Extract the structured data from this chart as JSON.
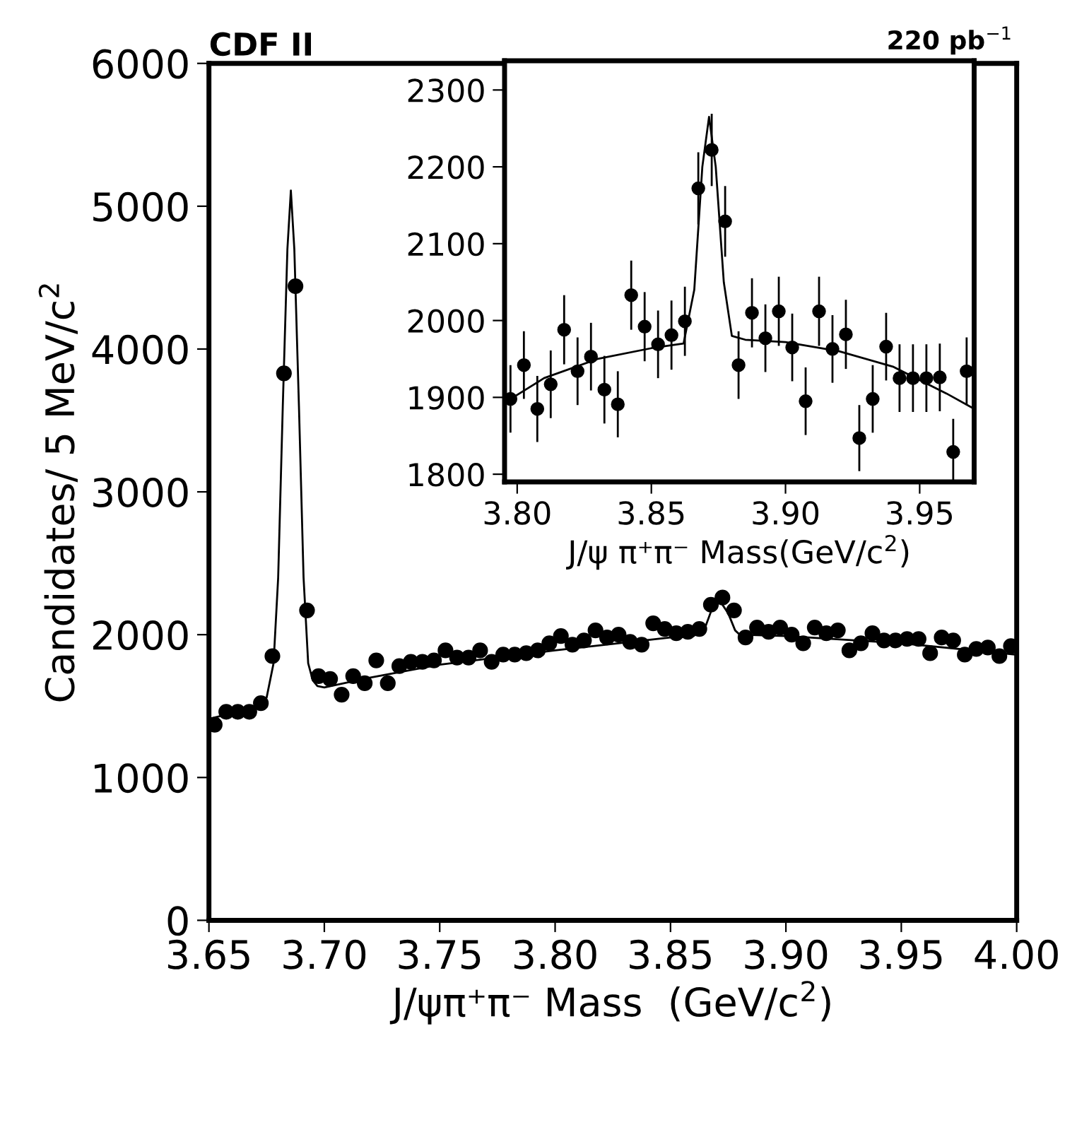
{
  "chart_data": [
    {
      "type": "scatter",
      "title": "CDF II",
      "xlabel": "J/ψπ⁺π⁻ Mass  (GeV/c$^{2}$)",
      "ylabel": "Candidates/ 5 MeV/c$^{2}$",
      "annotations": [
        "220 pb$^{−1}$"
      ],
      "xlim": [
        3.65,
        4.0
      ],
      "xticks": [
        {
          "value": 3.65,
          "label": "3.65"
        },
        {
          "value": 3.7,
          "label": "3.70"
        },
        {
          "value": 3.75,
          "label": "3.75"
        },
        {
          "value": 3.8,
          "label": "3.80"
        },
        {
          "value": 3.85,
          "label": "3.85"
        },
        {
          "value": 3.9,
          "label": "3.90"
        },
        {
          "value": 3.95,
          "label": "3.95"
        },
        {
          "value": 4.0,
          "label": "4.00"
        }
      ],
      "ylim": [
        0,
        6000
      ],
      "yticks": [
        0,
        1000,
        2000,
        3000,
        4000,
        5000,
        6000
      ],
      "series": [
        {
          "color": "#000000",
          "marker": "circle",
          "x": [
            3.6525,
            3.6575,
            3.6625,
            3.6675,
            3.6725,
            3.6775,
            3.6825,
            3.6875,
            3.6925,
            3.6975,
            3.7025,
            3.7075,
            3.7125,
            3.7175,
            3.7225,
            3.7275,
            3.7325,
            3.7375,
            3.7425,
            3.7475,
            3.7525,
            3.7575,
            3.7625,
            3.7675,
            3.7725,
            3.7775,
            3.7825,
            3.7875,
            3.7925,
            3.7975,
            3.8025,
            3.8075,
            3.8125,
            3.8175,
            3.8225,
            3.8275,
            3.8325,
            3.8375,
            3.8425,
            3.8475,
            3.8525,
            3.8575,
            3.8625,
            3.8675,
            3.8725,
            3.8775,
            3.8825,
            3.8875,
            3.8925,
            3.8975,
            3.9025,
            3.9075,
            3.9125,
            3.9175,
            3.9225,
            3.9275,
            3.9325,
            3.9375,
            3.9425,
            3.9475,
            3.9525,
            3.9575,
            3.9625,
            3.9675,
            3.9725,
            3.9775,
            3.9825,
            3.9875,
            3.9925,
            3.9975
          ],
          "values": [
            1370,
            1460,
            1460,
            1460,
            1520,
            1850,
            3830,
            4440,
            2170,
            1710,
            1690,
            1580,
            1710,
            1660,
            1820,
            1660,
            1780,
            1810,
            1810,
            1820,
            1890,
            1840,
            1840,
            1890,
            1810,
            1860,
            1860,
            1870,
            1890,
            1940,
            1990,
            1930,
            1960,
            2030,
            1980,
            2000,
            1950,
            1930,
            2080,
            2040,
            2010,
            2020,
            2040,
            2210,
            2260,
            2170,
            1980,
            2050,
            2020,
            2050,
            2000,
            1940,
            2050,
            2010,
            2030,
            1890,
            1940,
            2010,
            1960,
            1960,
            1970,
            1970,
            1870,
            1980,
            1960,
            1860,
            1900,
            1910,
            1850,
            1920
          ]
        },
        {
          "type": "line",
          "color": "#000000",
          "line_style": "solid",
          "x": [
            3.65,
            3.66,
            3.67,
            3.675,
            3.678,
            3.68,
            3.682,
            3.684,
            3.6855,
            3.687,
            3.689,
            3.691,
            3.693,
            3.695,
            3.697,
            3.7,
            3.72,
            3.75,
            3.8,
            3.85,
            3.86,
            3.865,
            3.87,
            3.875,
            3.878,
            3.88,
            3.9,
            3.95,
            4.0
          ],
          "values": [
            1410,
            1450,
            1490,
            1560,
            1800,
            2400,
            3600,
            4700,
            5110,
            4700,
            3600,
            2400,
            1800,
            1680,
            1640,
            1630,
            1700,
            1790,
            1890,
            1980,
            1990,
            2050,
            2270,
            2150,
            2030,
            2000,
            1990,
            1940,
            1860
          ]
        }
      ]
    },
    {
      "type": "scatter",
      "xlabel": "J/ψ π⁺π⁻ Mass(GeV/c$^{2}$)",
      "xlim": [
        3.7953,
        3.9703
      ],
      "xticks": [
        {
          "value": 3.8,
          "label": "3.80"
        },
        {
          "value": 3.85,
          "label": "3.85"
        },
        {
          "value": 3.9,
          "label": "3.90"
        },
        {
          "value": 3.95,
          "label": "3.95"
        }
      ],
      "ylim": [
        1790,
        2338
      ],
      "yticks": [
        1800,
        1900,
        2000,
        2100,
        2200,
        2300
      ],
      "series": [
        {
          "color": "#000000",
          "marker": "circle",
          "x": [
            3.7975,
            3.8025,
            3.8075,
            3.8125,
            3.8175,
            3.8225,
            3.8275,
            3.8325,
            3.8375,
            3.8425,
            3.8475,
            3.8525,
            3.8575,
            3.8625,
            3.8675,
            3.8725,
            3.8775,
            3.8825,
            3.8875,
            3.8925,
            3.8975,
            3.9025,
            3.9075,
            3.9125,
            3.9175,
            3.9225,
            3.9275,
            3.9325,
            3.9375,
            3.9425,
            3.9475,
            3.9525,
            3.9575,
            3.9625,
            3.9675
          ],
          "values": [
            1898,
            1942,
            1885,
            1917,
            1988,
            1934,
            1953,
            1910,
            1891,
            2033,
            1992,
            1969,
            1981,
            1999,
            2172,
            2222,
            2129,
            1942,
            2010,
            1977,
            2012,
            1965,
            1895,
            2012,
            1963,
            1982,
            1847,
            1898,
            1966,
            1925,
            1925,
            1925,
            1926,
            1829,
            1934
          ],
          "errors": [
            44,
            44,
            43,
            44,
            45,
            44,
            44,
            44,
            43,
            45,
            45,
            44,
            45,
            45,
            47,
            47,
            46,
            44,
            45,
            44,
            45,
            44,
            44,
            45,
            44,
            45,
            43,
            44,
            44,
            44,
            44,
            44,
            44,
            43,
            44
          ]
        },
        {
          "type": "line",
          "color": "#000000",
          "line_style": "solid",
          "x": [
            3.7953,
            3.81,
            3.83,
            3.85,
            3.862,
            3.866,
            3.869,
            3.8715,
            3.874,
            3.877,
            3.88,
            3.885,
            3.9,
            3.92,
            3.94,
            3.96,
            3.9703
          ],
          "values": [
            1893,
            1925,
            1950,
            1964,
            1970,
            2040,
            2200,
            2265,
            2200,
            2050,
            1980,
            1975,
            1972,
            1960,
            1940,
            1905,
            1885
          ]
        }
      ]
    }
  ]
}
